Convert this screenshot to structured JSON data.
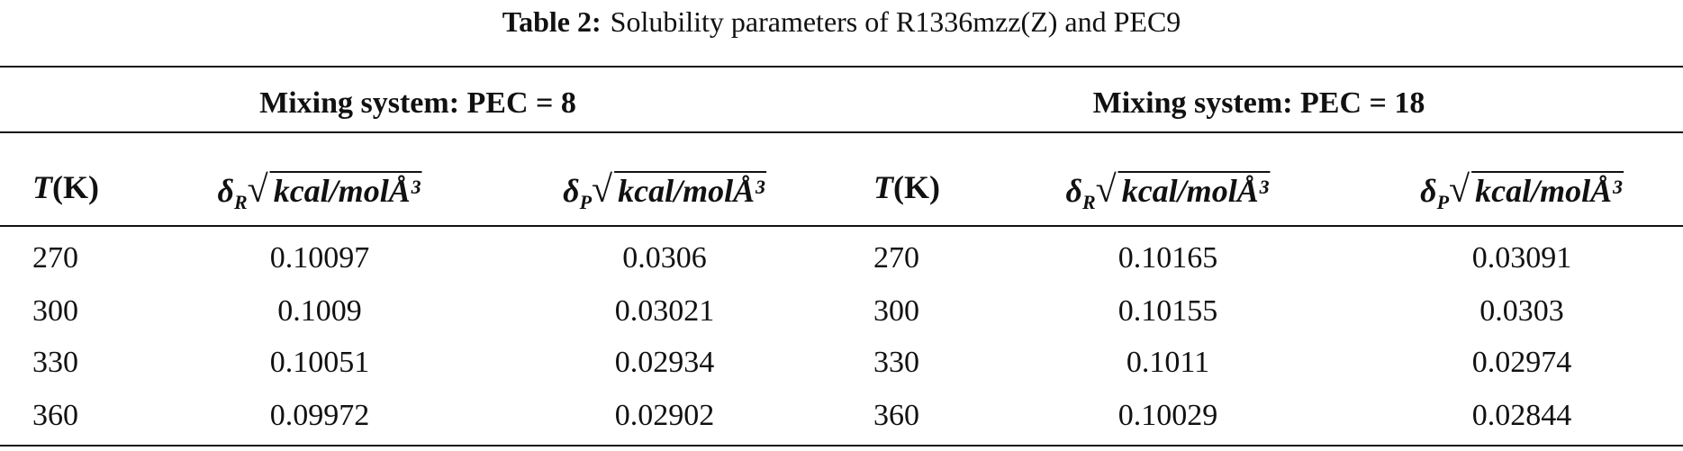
{
  "caption": {
    "label": "Table 2:",
    "text": "Solubility parameters of R1336mzz(Z) and PEC9"
  },
  "table": {
    "groups": [
      "Mixing system: PEC = 8",
      "Mixing system: PEC = 18"
    ],
    "columns": [
      {
        "symbol": "T",
        "unit": "(K)"
      },
      {
        "symbol": "δ",
        "subscript": "R",
        "radicand": "kcal/molÅ³"
      },
      {
        "symbol": "δ",
        "subscript": "P",
        "radicand": "kcal/molÅ³"
      },
      {
        "symbol": "T",
        "unit": "(K)"
      },
      {
        "symbol": "δ",
        "subscript": "R",
        "radicand": "kcal/molÅ³"
      },
      {
        "symbol": "δ",
        "subscript": "P",
        "radicand": "kcal/molÅ³"
      }
    ],
    "rows": [
      [
        270,
        0.10097,
        0.0306,
        270,
        0.10165,
        0.03091
      ],
      [
        300,
        0.1009,
        0.03021,
        300,
        0.10155,
        0.0303
      ],
      [
        330,
        0.10051,
        0.02934,
        330,
        0.1011,
        0.02974
      ],
      [
        360,
        0.09972,
        0.02902,
        360,
        0.10029,
        0.02844
      ]
    ]
  }
}
